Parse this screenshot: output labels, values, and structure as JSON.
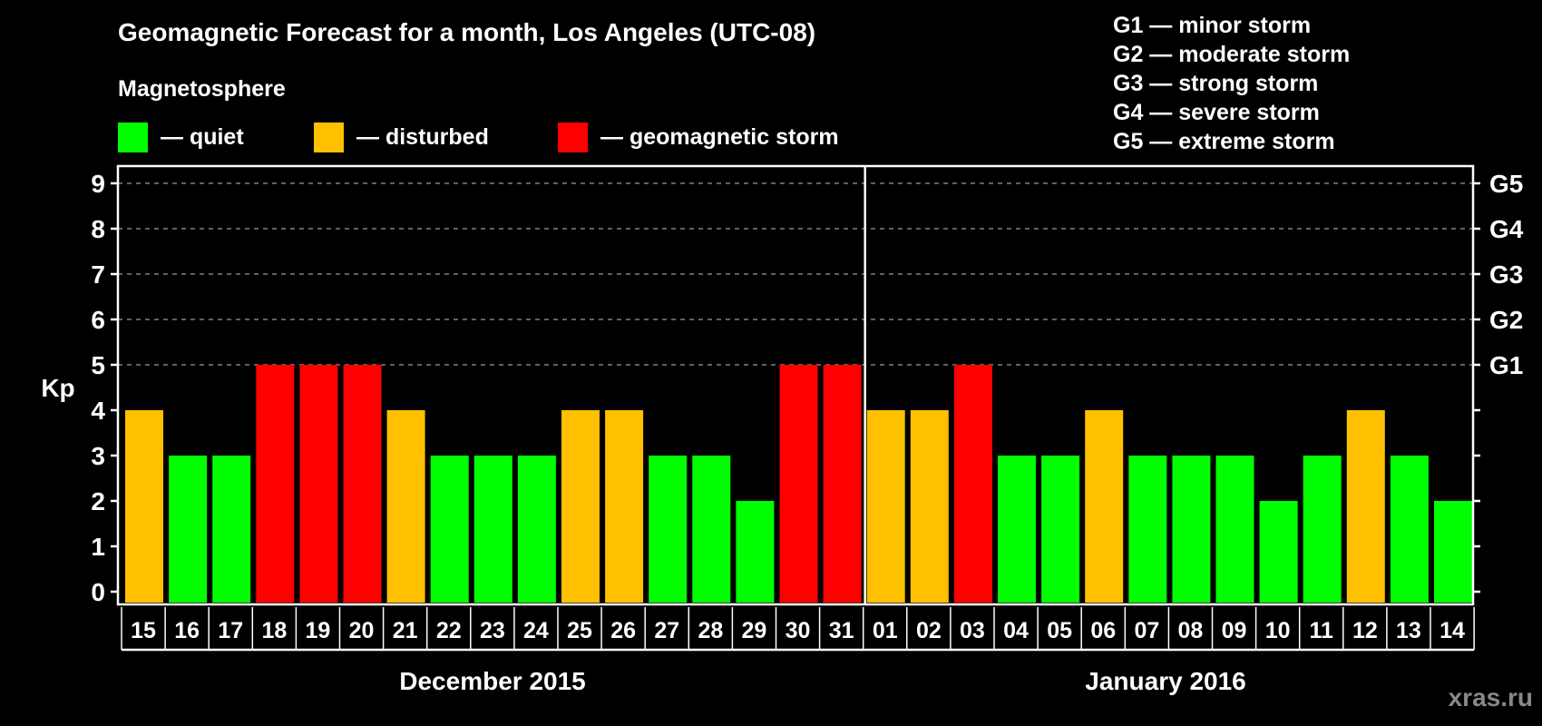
{
  "header": {
    "title": "Geomagnetic Forecast for a month, Los Angeles (UTC-08)",
    "subtitle": "Magnetosphere"
  },
  "legend": {
    "items": [
      {
        "label": "— quiet",
        "color": "#00ff00"
      },
      {
        "label": "— disturbed",
        "color": "#ffc000"
      },
      {
        "label": "— geomagnetic storm",
        "color": "#ff0000"
      }
    ]
  },
  "g_scale_legend": [
    "G1 — minor storm",
    "G2 — moderate storm",
    "G3 — strong storm",
    "G4 — severe storm",
    "G5 — extreme storm"
  ],
  "months": [
    "December 2015",
    "January 2016"
  ],
  "watermark": "xras.ru",
  "colors": {
    "quiet": "#00ff00",
    "disturbed": "#ffc000",
    "storm": "#ff0000",
    "grid": "#808080",
    "axis": "#ffffff",
    "background": "#000000"
  },
  "chart_data": {
    "type": "bar",
    "title": "Geomagnetic Forecast for a month, Los Angeles (UTC-08)",
    "xlabel": "",
    "ylabel": "Kp",
    "ylim": [
      0,
      9
    ],
    "yticks": [
      0,
      1,
      2,
      3,
      4,
      5,
      6,
      7,
      8,
      9
    ],
    "right_axis_labels": {
      "5": "G1",
      "6": "G2",
      "7": "G3",
      "8": "G4",
      "9": "G5"
    },
    "grid": "dashed horizontal at Kp 5-9",
    "categories": [
      "15",
      "16",
      "17",
      "18",
      "19",
      "20",
      "21",
      "22",
      "23",
      "24",
      "25",
      "26",
      "27",
      "28",
      "29",
      "30",
      "31",
      "01",
      "02",
      "03",
      "04",
      "05",
      "06",
      "07",
      "08",
      "09",
      "10",
      "11",
      "12",
      "13",
      "14"
    ],
    "month_groups": [
      {
        "label": "December 2015",
        "from": "15",
        "to": "31"
      },
      {
        "label": "January 2016",
        "from": "01",
        "to": "14"
      }
    ],
    "values": [
      4,
      3,
      3,
      5,
      5,
      5,
      4,
      3,
      3,
      3,
      4,
      4,
      3,
      3,
      2,
      5,
      5,
      4,
      4,
      5,
      3,
      3,
      4,
      3,
      3,
      3,
      2,
      3,
      4,
      3,
      2
    ],
    "levels": [
      "disturbed",
      "quiet",
      "quiet",
      "storm",
      "storm",
      "storm",
      "disturbed",
      "quiet",
      "quiet",
      "quiet",
      "disturbed",
      "disturbed",
      "quiet",
      "quiet",
      "quiet",
      "storm",
      "storm",
      "disturbed",
      "disturbed",
      "storm",
      "quiet",
      "quiet",
      "disturbed",
      "quiet",
      "quiet",
      "quiet",
      "quiet",
      "quiet",
      "disturbed",
      "quiet",
      "quiet"
    ],
    "legend": [
      "quiet",
      "disturbed",
      "geomagnetic storm"
    ]
  }
}
